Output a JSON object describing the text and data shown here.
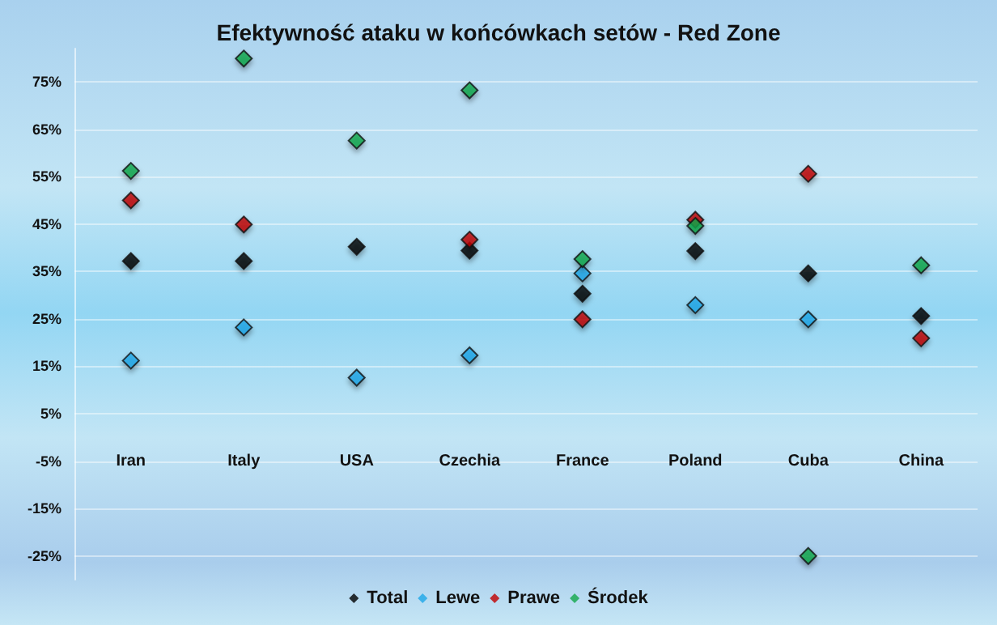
{
  "chart_data": {
    "type": "scatter",
    "title": "Efektywność ataku w końcówkach setów - Red Zone",
    "categories": [
      "Iran",
      "Italy",
      "USA",
      "Czechia",
      "France",
      "Poland",
      "Cuba",
      "China"
    ],
    "series": [
      {
        "name": "Total",
        "color": "#000000",
        "values": [
          37.2,
          37.2,
          40.2,
          39.4,
          30.3,
          39.3,
          34.6,
          25.6
        ]
      },
      {
        "name": "Lewe",
        "color": "#1ea7e8",
        "values": [
          16.2,
          23.2,
          12.6,
          17.3,
          34.6,
          27.9,
          24.9,
          null
        ]
      },
      {
        "name": "Prawe",
        "color": "#c00000",
        "values": [
          50,
          44.9,
          null,
          41.7,
          24.9,
          45.9,
          55.6,
          20.9
        ]
      },
      {
        "name": "Środek",
        "color": "#13a84a",
        "values": [
          56.2,
          79.9,
          62.6,
          73.2,
          37.6,
          44.6,
          -25,
          36.3
        ]
      }
    ],
    "ylim": [
      -30,
      82
    ],
    "yticks": [
      {
        "value": -25,
        "label": "-25%"
      },
      {
        "value": -15,
        "label": "-15%"
      },
      {
        "value": -5,
        "label": "-5%"
      },
      {
        "value": 5,
        "label": "5%"
      },
      {
        "value": 15,
        "label": "15%"
      },
      {
        "value": 25,
        "label": "25%"
      },
      {
        "value": 35,
        "label": "35%"
      },
      {
        "value": 45,
        "label": "45%"
      },
      {
        "value": 55,
        "label": "55%"
      },
      {
        "value": 65,
        "label": "65%"
      },
      {
        "value": 75,
        "label": "75%"
      }
    ],
    "grid": "y",
    "legend": "bottom",
    "marker": "diamond"
  }
}
